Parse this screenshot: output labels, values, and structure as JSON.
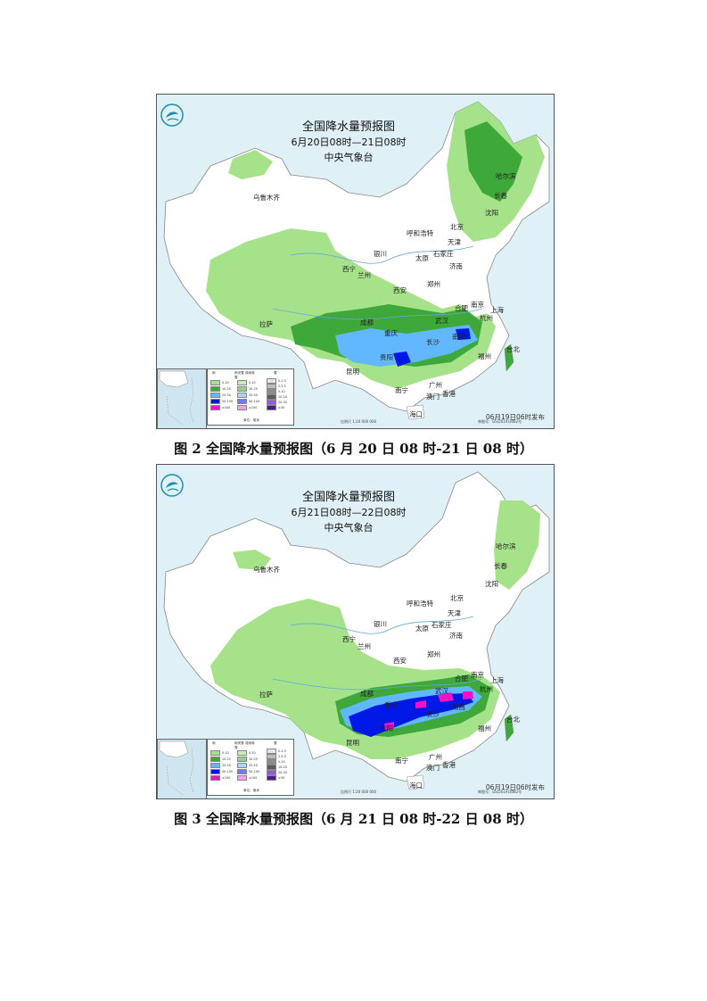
{
  "figures": [
    {
      "title": "全国降水量预报图",
      "period": "6月20日08时—21日08时",
      "agency": "中央气象台",
      "issue_time": "06月19日06时发布",
      "scale_text": "比例尺 1:20 000 000",
      "map_no": "审图号：GS(2019)3082号",
      "caption": "图 2   全国降水量预报图（6 月 20 日 08 时-21 日 08 时）",
      "cities": [
        "乌鲁木齐",
        "哈尔滨",
        "长春",
        "沈阳",
        "北京",
        "天津",
        "呼和浩特",
        "太原",
        "石家庄",
        "济南",
        "银川",
        "西宁",
        "兰州",
        "西安",
        "郑州",
        "合肥",
        "南京",
        "上海",
        "杭州",
        "武汉",
        "拉萨",
        "成都",
        "重庆",
        "长沙",
        "南昌",
        "贵阳",
        "昆明",
        "福州",
        "台北",
        "南宁",
        "广州",
        "澳门",
        "香港",
        "海口"
      ]
    },
    {
      "title": "全国降水量预报图",
      "period": "6月21日08时—22日08时",
      "agency": "中央气象台",
      "issue_time": "06月19日06时发布",
      "scale_text": "比例尺 1:20 000 000",
      "map_no": "审图号：GS(2019)3082号",
      "caption": "图 3   全国降水量预报图（6 月 21 日 08 时-22 日 08 时）",
      "cities": [
        "乌鲁木齐",
        "哈尔滨",
        "长春",
        "沈阳",
        "北京",
        "天津",
        "呼和浩特",
        "太原",
        "石家庄",
        "济南",
        "银川",
        "西宁",
        "兰州",
        "西安",
        "郑州",
        "合肥",
        "南京",
        "上海",
        "杭州",
        "武汉",
        "拉萨",
        "成都",
        "重庆",
        "长沙",
        "南昌",
        "贵阳",
        "昆明",
        "福州",
        "台北",
        "南宁",
        "广州",
        "澳门",
        "香港",
        "海口"
      ]
    }
  ],
  "legend": {
    "col_rain": "雨",
    "col_mix": "雨夹雪 或雨转雪",
    "col_snow": "雪",
    "unit": "单位：毫米",
    "rain": [
      {
        "label": "0-10",
        "color": "#a6e28a"
      },
      {
        "label": "10-25",
        "color": "#3fa83a"
      },
      {
        "label": "25-50",
        "color": "#62b8ff"
      },
      {
        "label": "50-100",
        "color": "#0018e6"
      },
      {
        "label": "≥100",
        "color": "#f012c8"
      }
    ],
    "mix": [
      {
        "label": "0-10",
        "color": "#c8ecb4"
      },
      {
        "label": "10-25",
        "color": "#8fd08a"
      },
      {
        "label": "25-50",
        "color": "#a8d4ff"
      },
      {
        "label": "50-100",
        "color": "#6f7cf0"
      },
      {
        "label": "≥100",
        "color": "#f5a0e6"
      }
    ],
    "snow": [
      {
        "label": "0-2.5",
        "color": "#e6e6e6"
      },
      {
        "label": "2.5-5",
        "color": "#bdbdbd"
      },
      {
        "label": "5-10",
        "color": "#8c8c8c"
      },
      {
        "label": "10-20",
        "color": "#5a5a5a"
      },
      {
        "label": "20-30",
        "color": "#8a5fd6"
      },
      {
        "label": "≥30",
        "color": "#4b1a8c"
      }
    ]
  },
  "colors": {
    "sea": "#dff0f7",
    "land": "#ffffff",
    "light_green": "#a6e28a",
    "green": "#3fa83a",
    "light_blue": "#62b8ff",
    "blue": "#0018e6",
    "magenta": "#f012c8"
  }
}
